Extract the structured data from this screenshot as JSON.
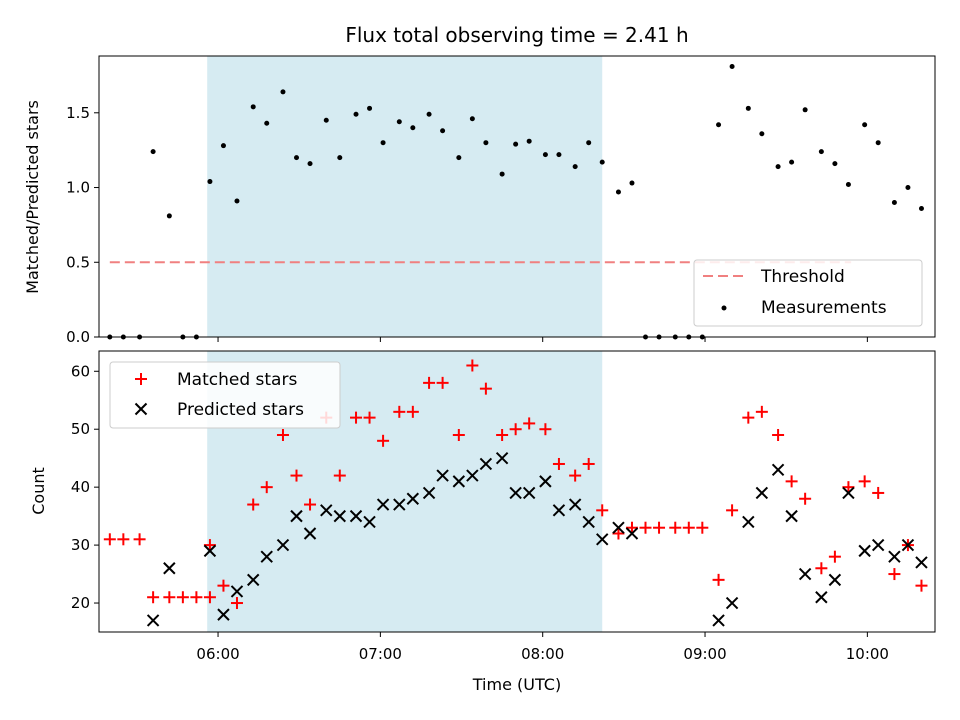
{
  "chart_data": {
    "title": "Flux total observing time = 2.41 h",
    "shaded_region": {
      "x": [
        "05:56",
        "08:22"
      ],
      "color": "#add8e6"
    },
    "x_ticks": [
      "06:00",
      "07:00",
      "08:00",
      "09:00",
      "10:00"
    ],
    "xlabel": "Time (UTC)",
    "panels": [
      {
        "type": "scatter",
        "ylabel": "Matched/Predicted stars",
        "ylim": [
          0,
          1.88
        ],
        "yticks": [
          "0.0",
          "0.5",
          "1.0",
          "1.5"
        ],
        "legend_position": "lower-right",
        "threshold": {
          "name": "Threshold",
          "y": 0.5,
          "x": [
            "05:20",
            "09:54"
          ],
          "color": "#f08080"
        },
        "series": [
          {
            "name": "Measurements",
            "color": "#000000",
            "points": [
              [
                "05:20",
                0
              ],
              [
                "05:25",
                0
              ],
              [
                "05:31",
                0
              ],
              [
                "05:36",
                1.24
              ],
              [
                "05:42",
                0.81
              ],
              [
                "05:47",
                0
              ],
              [
                "05:52",
                0
              ],
              [
                "05:57",
                1.04
              ],
              [
                "06:02",
                1.28
              ],
              [
                "06:07",
                0.91
              ],
              [
                "06:13",
                1.54
              ],
              [
                "06:18",
                1.43
              ],
              [
                "06:24",
                1.64
              ],
              [
                "06:29",
                1.2
              ],
              [
                "06:34",
                1.16
              ],
              [
                "06:40",
                1.45
              ],
              [
                "06:45",
                1.2
              ],
              [
                "06:51",
                1.49
              ],
              [
                "06:56",
                1.53
              ],
              [
                "07:01",
                1.3
              ],
              [
                "07:07",
                1.44
              ],
              [
                "07:12",
                1.4
              ],
              [
                "07:18",
                1.49
              ],
              [
                "07:23",
                1.38
              ],
              [
                "07:29",
                1.2
              ],
              [
                "07:34",
                1.46
              ],
              [
                "07:39",
                1.3
              ],
              [
                "07:45",
                1.09
              ],
              [
                "07:50",
                1.29
              ],
              [
                "07:55",
                1.31
              ],
              [
                "08:01",
                1.22
              ],
              [
                "08:06",
                1.22
              ],
              [
                "08:12",
                1.14
              ],
              [
                "08:17",
                1.3
              ],
              [
                "08:22",
                1.17
              ],
              [
                "08:28",
                0.97
              ],
              [
                "08:33",
                1.03
              ],
              [
                "08:38",
                0
              ],
              [
                "08:43",
                0
              ],
              [
                "08:49",
                0
              ],
              [
                "08:54",
                0
              ],
              [
                "08:59",
                0
              ],
              [
                "09:05",
                1.42
              ],
              [
                "09:10",
                1.81
              ],
              [
                "09:16",
                1.53
              ],
              [
                "09:21",
                1.36
              ],
              [
                "09:27",
                1.14
              ],
              [
                "09:32",
                1.17
              ],
              [
                "09:37",
                1.52
              ],
              [
                "09:43",
                1.24
              ],
              [
                "09:48",
                1.16
              ],
              [
                "09:53",
                1.02
              ],
              [
                "09:59",
                1.42
              ],
              [
                "10:04",
                1.3
              ],
              [
                "10:10",
                0.9
              ],
              [
                "10:15",
                1.0
              ],
              [
                "10:20",
                0.86
              ]
            ]
          }
        ]
      },
      {
        "type": "scatter",
        "ylabel": "Count",
        "ylim": [
          15,
          63.5
        ],
        "yticks": [
          "20",
          "30",
          "40",
          "50",
          "60"
        ],
        "legend_position": "upper-left",
        "series": [
          {
            "name": "Matched stars",
            "marker": "+",
            "color": "#ff0000",
            "points": [
              [
                "05:20",
                31
              ],
              [
                "05:25",
                31
              ],
              [
                "05:31",
                31
              ],
              [
                "05:36",
                21
              ],
              [
                "05:42",
                21
              ],
              [
                "05:47",
                21
              ],
              [
                "05:52",
                21
              ],
              [
                "05:57",
                21
              ],
              [
                "05:57",
                30
              ],
              [
                "06:02",
                23
              ],
              [
                "06:07",
                20
              ],
              [
                "06:13",
                37
              ],
              [
                "06:18",
                40
              ],
              [
                "06:24",
                49
              ],
              [
                "06:29",
                42
              ],
              [
                "06:34",
                37
              ],
              [
                "06:40",
                52
              ],
              [
                "06:45",
                42
              ],
              [
                "06:51",
                52
              ],
              [
                "06:56",
                52
              ],
              [
                "07:01",
                48
              ],
              [
                "07:07",
                53
              ],
              [
                "07:12",
                53
              ],
              [
                "07:18",
                58
              ],
              [
                "07:23",
                58
              ],
              [
                "07:29",
                49
              ],
              [
                "07:34",
                61
              ],
              [
                "07:39",
                57
              ],
              [
                "07:45",
                49
              ],
              [
                "07:50",
                50
              ],
              [
                "07:55",
                51
              ],
              [
                "08:01",
                50
              ],
              [
                "08:06",
                44
              ],
              [
                "08:12",
                42
              ],
              [
                "08:17",
                44
              ],
              [
                "08:22",
                36
              ],
              [
                "08:28",
                32
              ],
              [
                "08:33",
                33
              ],
              [
                "08:38",
                33
              ],
              [
                "08:43",
                33
              ],
              [
                "08:49",
                33
              ],
              [
                "08:54",
                33
              ],
              [
                "08:59",
                33
              ],
              [
                "09:05",
                24
              ],
              [
                "09:10",
                36
              ],
              [
                "09:16",
                52
              ],
              [
                "09:21",
                53
              ],
              [
                "09:27",
                49
              ],
              [
                "09:32",
                41
              ],
              [
                "09:37",
                38
              ],
              [
                "09:43",
                26
              ],
              [
                "09:48",
                28
              ],
              [
                "09:53",
                40
              ],
              [
                "09:59",
                41
              ],
              [
                "10:04",
                39
              ],
              [
                "10:10",
                25
              ],
              [
                "10:15",
                30
              ],
              [
                "10:20",
                23
              ]
            ]
          },
          {
            "name": "Predicted stars",
            "marker": "x",
            "color": "#000000",
            "points": [
              [
                "05:36",
                17
              ],
              [
                "05:42",
                26
              ],
              [
                "05:57",
                29
              ],
              [
                "06:02",
                18
              ],
              [
                "06:07",
                22
              ],
              [
                "06:13",
                24
              ],
              [
                "06:18",
                28
              ],
              [
                "06:24",
                30
              ],
              [
                "06:29",
                35
              ],
              [
                "06:34",
                32
              ],
              [
                "06:40",
                36
              ],
              [
                "06:45",
                35
              ],
              [
                "06:51",
                35
              ],
              [
                "06:56",
                34
              ],
              [
                "07:01",
                37
              ],
              [
                "07:07",
                37
              ],
              [
                "07:12",
                38
              ],
              [
                "07:18",
                39
              ],
              [
                "07:23",
                42
              ],
              [
                "07:29",
                41
              ],
              [
                "07:34",
                42
              ],
              [
                "07:39",
                44
              ],
              [
                "07:45",
                45
              ],
              [
                "07:50",
                39
              ],
              [
                "07:55",
                39
              ],
              [
                "08:01",
                41
              ],
              [
                "08:06",
                36
              ],
              [
                "08:12",
                37
              ],
              [
                "08:17",
                34
              ],
              [
                "08:22",
                31
              ],
              [
                "08:28",
                33
              ],
              [
                "08:33",
                32
              ],
              [
                "09:05",
                17
              ],
              [
                "09:10",
                20
              ],
              [
                "09:16",
                34
              ],
              [
                "09:21",
                39
              ],
              [
                "09:27",
                43
              ],
              [
                "09:32",
                35
              ],
              [
                "09:37",
                25
              ],
              [
                "09:43",
                21
              ],
              [
                "09:48",
                24
              ],
              [
                "09:53",
                39
              ],
              [
                "09:59",
                29
              ],
              [
                "10:04",
                30
              ],
              [
                "10:10",
                28
              ],
              [
                "10:15",
                30
              ],
              [
                "10:20",
                27
              ]
            ]
          }
        ]
      }
    ]
  }
}
